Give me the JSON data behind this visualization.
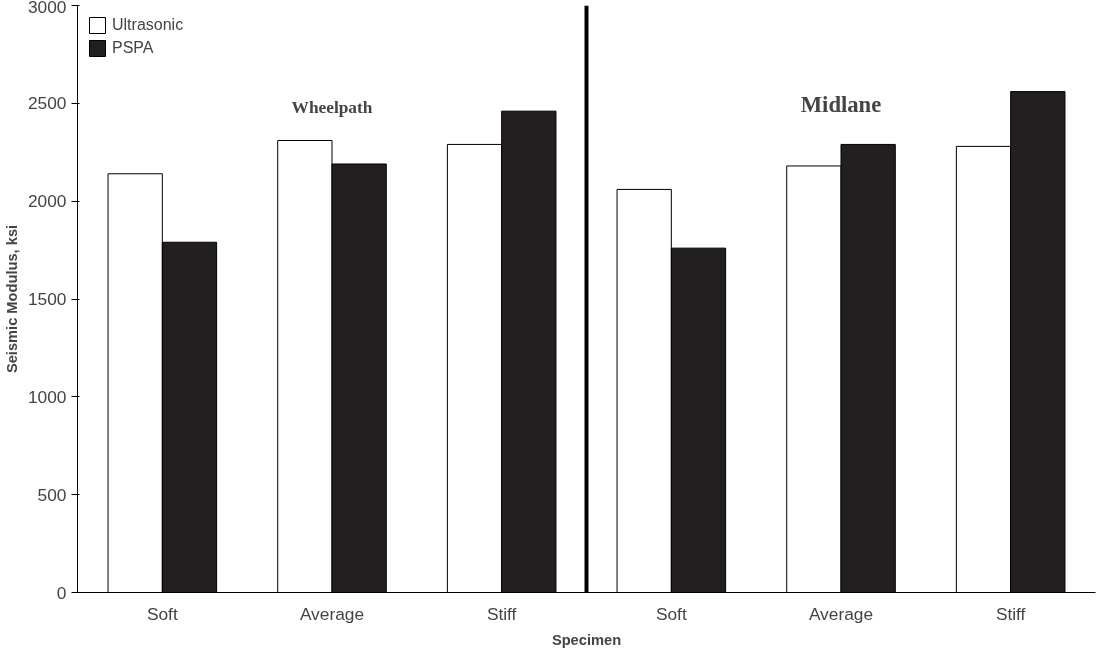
{
  "chart_data": {
    "type": "bar",
    "xlabel": "Specimen",
    "ylabel": "Seismic Modulus, ksi",
    "categories": [
      "Soft",
      "Average",
      "Stiff",
      "Soft",
      "Average",
      "Stiff"
    ],
    "series": [
      {
        "name": "Ultrasonic",
        "color": "#ffffff",
        "values": [
          2140,
          2310,
          2290,
          2060,
          2180,
          2280
        ]
      },
      {
        "name": "PSPA",
        "color": "#231f20",
        "values": [
          1790,
          2190,
          2460,
          1760,
          2290,
          2560
        ]
      }
    ],
    "ylim": [
      0,
      3000
    ],
    "yticks": [
      0,
      500,
      1000,
      1500,
      2000,
      2500,
      3000
    ],
    "annotations": [
      "Wheelpath",
      "Midlane"
    ],
    "legend": "top left",
    "grid": false
  }
}
